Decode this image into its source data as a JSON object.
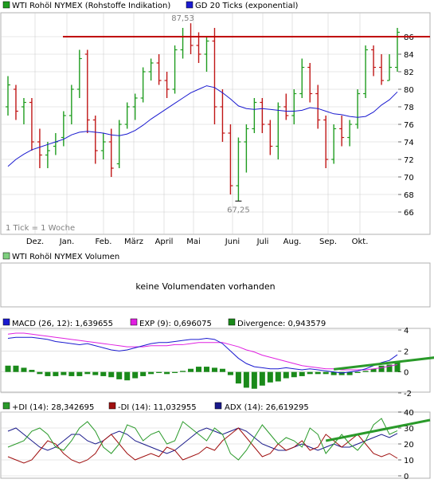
{
  "colors": {
    "up_bar": "#1f9c1f",
    "down_bar": "#c01616",
    "ma_line": "#1a1ad0",
    "resistance_line": "#c00000",
    "macd_line": "#1a1ad0",
    "exp_line": "#e020e0",
    "divergence_bar": "#1a8a1a",
    "trend_line": "#2a9a2a",
    "plus_di": "#2a9a2a",
    "minus_di": "#a01010",
    "adx": "#1a1a8a",
    "grid": "#d0d0d0",
    "frame": "#b0b0b0"
  },
  "price_panel": {
    "legend_main": "WTI Rohöl NYMEX (Rohstoffe Indikation)",
    "legend_ma": "GD 20 Ticks (exponential)",
    "tick_note": "1 Tick = 1 Woche",
    "high_label": "87,53",
    "low_label": "67,25"
  },
  "volume_panel": {
    "legend": "WTI Rohöl NYMEX Volumen",
    "message": "keine Volumendaten vorhanden"
  },
  "macd_panel": {
    "legend_macd": "MACD (26, 12): 1,639655",
    "legend_exp": "EXP (9): 0,696075",
    "legend_div": "Divergence: 0,943579"
  },
  "dmi_panel": {
    "legend_plus": "+DI (14): 28,342695",
    "legend_minus": "-DI (14): 11,032955",
    "legend_adx": "ADX (14): 26,619295"
  },
  "chart_data": [
    {
      "type": "ohlc",
      "title": "WTI Rohöl NYMEX (Rohstoffe Indikation)",
      "months": [
        "Dez.",
        "Jan.",
        "Feb.",
        "März",
        "April",
        "Mai",
        "Juni",
        "Juli",
        "Aug.",
        "Sep.",
        "Okt."
      ],
      "ylim": [
        64,
        88
      ],
      "yticks": [
        66,
        68,
        70,
        72,
        74,
        76,
        78,
        80,
        82,
        84,
        86
      ],
      "resistance": 86,
      "bars": [
        {
          "o": 78.0,
          "h": 81.5,
          "l": 77.0,
          "c": 80.5
        },
        {
          "o": 80.0,
          "h": 80.5,
          "l": 76.5,
          "c": 77.5
        },
        {
          "o": 78.0,
          "h": 79.0,
          "l": 76.0,
          "c": 78.5
        },
        {
          "o": 78.5,
          "h": 79.0,
          "l": 73.0,
          "c": 74.0
        },
        {
          "o": 74.0,
          "h": 75.5,
          "l": 71.0,
          "c": 72.5
        },
        {
          "o": 72.5,
          "h": 74.0,
          "l": 71.0,
          "c": 73.0
        },
        {
          "o": 73.5,
          "h": 75.0,
          "l": 72.5,
          "c": 74.0
        },
        {
          "o": 74.5,
          "h": 77.5,
          "l": 73.5,
          "c": 77.0
        },
        {
          "o": 77.0,
          "h": 80.5,
          "l": 76.0,
          "c": 80.0
        },
        {
          "o": 80.0,
          "h": 84.5,
          "l": 79.0,
          "c": 83.5
        },
        {
          "o": 84.0,
          "h": 84.5,
          "l": 75.0,
          "c": 76.5
        },
        {
          "o": 76.5,
          "h": 77.0,
          "l": 71.5,
          "c": 73.0
        },
        {
          "o": 73.0,
          "h": 75.0,
          "l": 72.0,
          "c": 74.0
        },
        {
          "o": 74.0,
          "h": 75.5,
          "l": 70.0,
          "c": 71.0
        },
        {
          "o": 71.5,
          "h": 76.5,
          "l": 71.0,
          "c": 76.0
        },
        {
          "o": 76.0,
          "h": 78.5,
          "l": 75.5,
          "c": 78.0
        },
        {
          "o": 78.0,
          "h": 79.5,
          "l": 76.5,
          "c": 79.0
        },
        {
          "o": 79.0,
          "h": 82.5,
          "l": 78.5,
          "c": 82.0
        },
        {
          "o": 82.0,
          "h": 83.5,
          "l": 81.0,
          "c": 83.0
        },
        {
          "o": 83.0,
          "h": 84.0,
          "l": 80.5,
          "c": 81.0
        },
        {
          "o": 81.0,
          "h": 82.0,
          "l": 79.0,
          "c": 80.0
        },
        {
          "o": 80.0,
          "h": 85.0,
          "l": 79.5,
          "c": 84.5
        },
        {
          "o": 84.5,
          "h": 87.0,
          "l": 83.5,
          "c": 86.0
        },
        {
          "o": 86.0,
          "h": 87.53,
          "l": 84.0,
          "c": 85.0
        },
        {
          "o": 85.0,
          "h": 86.5,
          "l": 83.0,
          "c": 84.0
        },
        {
          "o": 84.0,
          "h": 86.0,
          "l": 82.0,
          "c": 85.5
        },
        {
          "o": 85.5,
          "h": 87.0,
          "l": 76.0,
          "c": 78.0
        },
        {
          "o": 78.0,
          "h": 80.0,
          "l": 74.0,
          "c": 75.0
        },
        {
          "o": 75.0,
          "h": 76.0,
          "l": 68.0,
          "c": 69.0
        },
        {
          "o": 69.0,
          "h": 74.5,
          "l": 67.25,
          "c": 74.0
        },
        {
          "o": 74.0,
          "h": 76.0,
          "l": 70.5,
          "c": 75.5
        },
        {
          "o": 75.5,
          "h": 79.0,
          "l": 75.0,
          "c": 78.5
        },
        {
          "o": 78.5,
          "h": 79.0,
          "l": 75.0,
          "c": 76.0
        },
        {
          "o": 76.0,
          "h": 76.5,
          "l": 72.5,
          "c": 73.5
        },
        {
          "o": 73.5,
          "h": 78.5,
          "l": 72.0,
          "c": 78.0
        },
        {
          "o": 78.0,
          "h": 79.5,
          "l": 76.5,
          "c": 77.0
        },
        {
          "o": 77.0,
          "h": 80.0,
          "l": 76.0,
          "c": 79.5
        },
        {
          "o": 79.5,
          "h": 83.5,
          "l": 79.0,
          "c": 82.5
        },
        {
          "o": 82.5,
          "h": 83.0,
          "l": 78.5,
          "c": 79.5
        },
        {
          "o": 79.5,
          "h": 80.5,
          "l": 75.5,
          "c": 76.5
        },
        {
          "o": 76.5,
          "h": 77.0,
          "l": 71.0,
          "c": 72.0
        },
        {
          "o": 72.0,
          "h": 76.0,
          "l": 71.5,
          "c": 75.5
        },
        {
          "o": 75.5,
          "h": 77.0,
          "l": 73.5,
          "c": 74.5
        },
        {
          "o": 74.5,
          "h": 76.5,
          "l": 73.5,
          "c": 76.0
        },
        {
          "o": 76.0,
          "h": 80.0,
          "l": 75.5,
          "c": 79.5
        },
        {
          "o": 79.5,
          "h": 85.0,
          "l": 79.0,
          "c": 84.5
        },
        {
          "o": 84.5,
          "h": 85.0,
          "l": 81.5,
          "c": 82.5
        },
        {
          "o": 82.5,
          "h": 84.0,
          "l": 80.5,
          "c": 81.0
        },
        {
          "o": 81.0,
          "h": 84.0,
          "l": 81.0,
          "c": 82.5
        },
        {
          "o": 82.5,
          "h": 87.0,
          "l": 82.0,
          "c": 86.5
        }
      ],
      "ma": [
        71.2,
        72.0,
        72.6,
        73.1,
        73.4,
        73.7,
        74.0,
        74.3,
        74.8,
        75.1,
        75.2,
        75.1,
        75.0,
        74.8,
        74.7,
        74.9,
        75.3,
        75.9,
        76.6,
        77.2,
        77.8,
        78.4,
        79.0,
        79.6,
        80.0,
        80.4,
        80.2,
        79.6,
        78.9,
        78.1,
        77.8,
        77.7,
        77.8,
        77.7,
        77.6,
        77.5,
        77.5,
        77.6,
        77.9,
        77.8,
        77.5,
        77.2,
        77.1,
        76.9,
        76.8,
        76.9,
        77.4,
        78.2,
        78.8,
        79.7
      ]
    },
    {
      "type": "macd",
      "ylim": [
        -2,
        4
      ],
      "yticks": [
        -2,
        0,
        2,
        4
      ],
      "macd": [
        3.2,
        3.3,
        3.3,
        3.3,
        3.2,
        3.1,
        2.9,
        2.8,
        2.7,
        2.6,
        2.7,
        2.5,
        2.3,
        2.1,
        2.0,
        2.1,
        2.3,
        2.5,
        2.7,
        2.8,
        2.8,
        2.9,
        3.0,
        3.1,
        3.1,
        3.2,
        3.1,
        2.7,
        2.0,
        1.3,
        0.8,
        0.5,
        0.4,
        0.3,
        0.3,
        0.4,
        0.3,
        0.2,
        0.3,
        0.2,
        0.1,
        0.0,
        -0.1,
        0.0,
        0.1,
        0.3,
        0.6,
        0.9,
        1.1,
        1.64
      ],
      "exp": [
        3.6,
        3.7,
        3.7,
        3.6,
        3.5,
        3.4,
        3.3,
        3.2,
        3.1,
        3.0,
        2.9,
        2.8,
        2.7,
        2.6,
        2.5,
        2.4,
        2.4,
        2.4,
        2.5,
        2.5,
        2.5,
        2.6,
        2.6,
        2.7,
        2.8,
        2.8,
        2.8,
        2.8,
        2.6,
        2.4,
        2.1,
        1.9,
        1.6,
        1.4,
        1.2,
        1.0,
        0.8,
        0.6,
        0.5,
        0.4,
        0.3,
        0.3,
        0.2,
        0.2,
        0.2,
        0.2,
        0.3,
        0.4,
        0.55,
        0.7
      ],
      "divergence": [
        0.6,
        0.6,
        0.4,
        0.2,
        -0.2,
        -0.4,
        -0.4,
        -0.3,
        -0.4,
        -0.4,
        -0.2,
        -0.3,
        -0.4,
        -0.5,
        -0.7,
        -0.8,
        -0.6,
        -0.4,
        -0.2,
        -0.1,
        -0.2,
        -0.1,
        0.1,
        0.3,
        0.5,
        0.5,
        0.4,
        0.3,
        -0.3,
        -1.1,
        -1.5,
        -1.6,
        -1.3,
        -1.0,
        -0.9,
        -0.6,
        -0.5,
        -0.4,
        -0.2,
        -0.2,
        -0.2,
        -0.3,
        -0.3,
        -0.3,
        -0.1,
        0.1,
        0.3,
        0.6,
        0.7,
        0.94
      ],
      "trendline": {
        "from": [
          41,
          0.25
        ],
        "to": [
          54,
          1.4
        ]
      }
    },
    {
      "type": "line",
      "ylim": [
        0,
        40
      ],
      "yticks": [
        0,
        10,
        20,
        30,
        40
      ],
      "series": [
        {
          "name": "+DI (14)",
          "values": [
            18,
            20,
            22,
            28,
            30,
            26,
            18,
            16,
            22,
            30,
            34,
            28,
            18,
            14,
            20,
            32,
            30,
            22,
            26,
            28,
            20,
            22,
            34,
            30,
            26,
            22,
            30,
            26,
            14,
            10,
            16,
            24,
            32,
            26,
            20,
            24,
            22,
            18,
            30,
            26,
            14,
            20,
            26,
            20,
            16,
            22,
            32,
            36,
            26,
            28.3
          ]
        },
        {
          "name": "-DI (14)",
          "values": [
            12,
            10,
            8,
            10,
            16,
            22,
            20,
            14,
            10,
            8,
            10,
            14,
            22,
            26,
            20,
            14,
            10,
            12,
            14,
            12,
            18,
            16,
            10,
            12,
            14,
            18,
            16,
            22,
            26,
            30,
            24,
            18,
            12,
            14,
            20,
            16,
            18,
            22,
            16,
            18,
            26,
            22,
            18,
            22,
            26,
            20,
            14,
            12,
            14,
            11.0
          ]
        },
        {
          "name": "ADX (14)",
          "values": [
            28,
            30,
            26,
            22,
            18,
            16,
            18,
            22,
            26,
            26,
            22,
            20,
            22,
            26,
            28,
            26,
            22,
            20,
            18,
            16,
            14,
            16,
            20,
            24,
            28,
            30,
            28,
            26,
            28,
            30,
            28,
            24,
            20,
            18,
            16,
            16,
            18,
            20,
            18,
            16,
            18,
            20,
            18,
            18,
            20,
            22,
            24,
            26,
            24,
            26.6
          ]
        }
      ],
      "trendline": {
        "from": [
          40,
          22
        ],
        "to": [
          54,
          40
        ]
      }
    }
  ]
}
